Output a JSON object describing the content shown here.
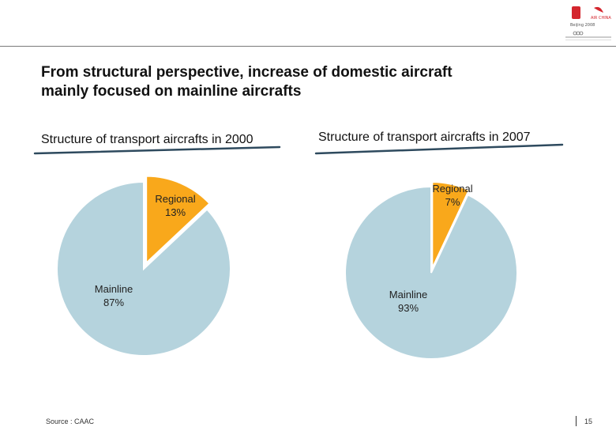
{
  "page": {
    "title_line1": "From structural perspective, increase of domestic aircraft",
    "title_line2": "mainly focused on mainline aircrafts",
    "source": "Source : CAAC",
    "page_number": "15"
  },
  "colors": {
    "mainline": "#b5d3dd",
    "regional": "#f9a81b",
    "underline": "#2e4a5e",
    "slice_stroke": "#ffffff"
  },
  "chart_data": [
    {
      "type": "pie",
      "title": "Structure of transport aircrafts in 2000",
      "slices": [
        {
          "label": "Regional",
          "value": 13,
          "display": "13%",
          "exploded": true
        },
        {
          "label": "Mainline",
          "value": 87,
          "display": "87%",
          "exploded": false
        }
      ]
    },
    {
      "type": "pie",
      "title": "Structure of transport aircrafts in 2007",
      "slices": [
        {
          "label": "Regional",
          "value": 7,
          "display": "7%",
          "exploded": true
        },
        {
          "label": "Mainline",
          "value": 93,
          "display": "93%",
          "exploded": false
        }
      ]
    }
  ]
}
